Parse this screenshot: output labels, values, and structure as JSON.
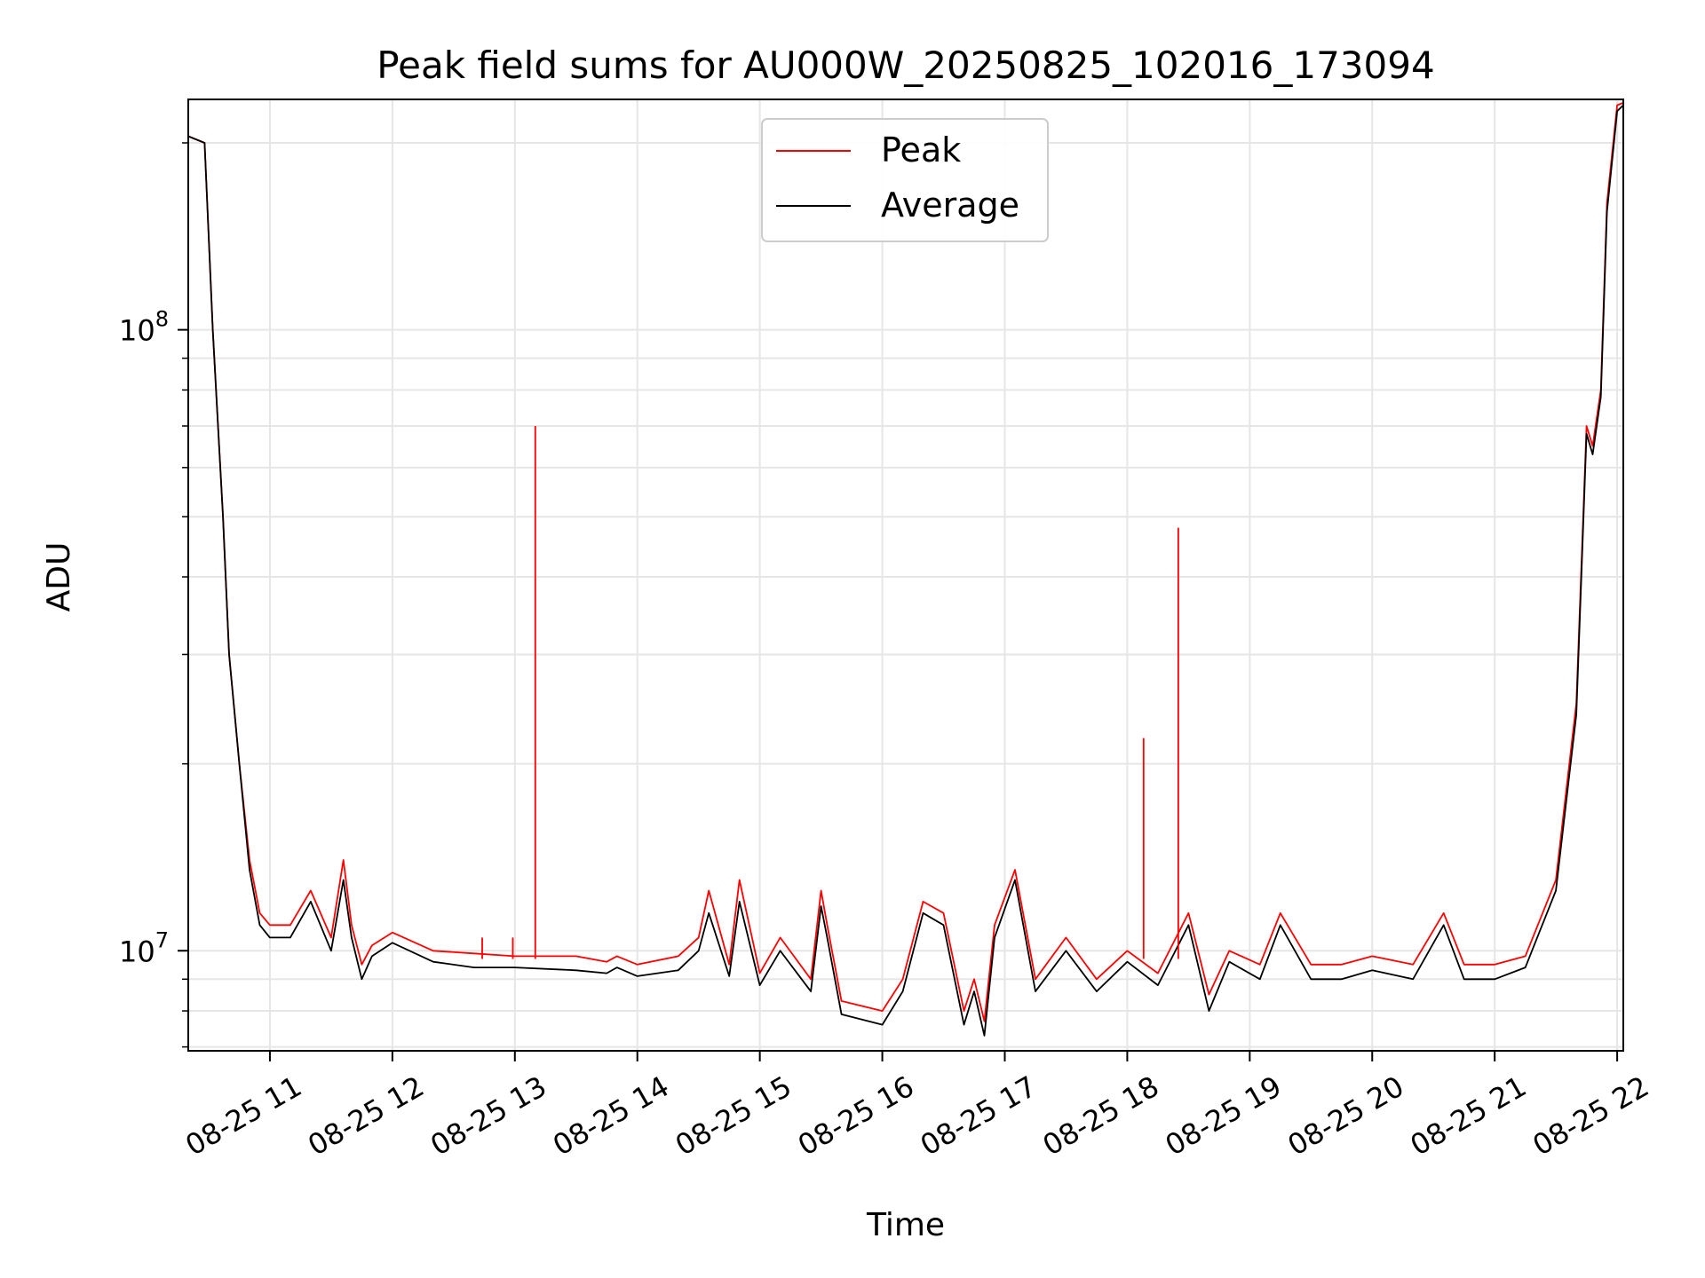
{
  "chart_data": {
    "type": "line",
    "title": "Peak field sums for AU000W_20250825_102016_173094",
    "xlabel": "Time",
    "ylabel": "ADU",
    "yscale": "log",
    "ylim": [
      6900000,
      235000000
    ],
    "xlim": [
      "08-25 10:20",
      "08-25 22:03"
    ],
    "x_ticks": [
      "08-25 11",
      "08-25 12",
      "08-25 13",
      "08-25 14",
      "08-25 15",
      "08-25 16",
      "08-25 17",
      "08-25 18",
      "08-25 19",
      "08-25 20",
      "08-25 21",
      "08-25 22"
    ],
    "y_ticks": [
      {
        "value": 10000000,
        "base": "10",
        "exp": "7"
      },
      {
        "value": 100000000,
        "base": "10",
        "exp": "8"
      }
    ],
    "grid": true,
    "legend_position": "top-center",
    "x": [
      "08-25 10:20",
      "08-25 10:28",
      "08-25 10:32",
      "08-25 10:37",
      "08-25 10:40",
      "08-25 10:45",
      "08-25 10:50",
      "08-25 10:55",
      "08-25 11:00",
      "08-25 11:10",
      "08-25 11:20",
      "08-25 11:30",
      "08-25 11:36",
      "08-25 11:40",
      "08-25 11:45",
      "08-25 11:50",
      "08-25 12:00",
      "08-25 12:20",
      "08-25 12:40",
      "08-25 13:00",
      "08-25 13:30",
      "08-25 13:45",
      "08-25 13:50",
      "08-25 14:00",
      "08-25 14:20",
      "08-25 14:30",
      "08-25 14:35",
      "08-25 14:45",
      "08-25 14:50",
      "08-25 15:00",
      "08-25 15:10",
      "08-25 15:25",
      "08-25 15:30",
      "08-25 15:33",
      "08-25 15:40",
      "08-25 16:00",
      "08-25 16:10",
      "08-25 16:20",
      "08-25 16:30",
      "08-25 16:40",
      "08-25 16:45",
      "08-25 16:50",
      "08-25 16:55",
      "08-25 17:05",
      "08-25 17:15",
      "08-25 17:30",
      "08-25 17:45",
      "08-25 18:00",
      "08-25 18:15",
      "08-25 18:30",
      "08-25 18:40",
      "08-25 18:50",
      "08-25 19:05",
      "08-25 19:15",
      "08-25 19:30",
      "08-25 19:45",
      "08-25 20:00",
      "08-25 20:20",
      "08-25 20:35",
      "08-25 20:45",
      "08-25 21:00",
      "08-25 21:15",
      "08-25 21:30",
      "08-25 21:40",
      "08-25 21:45",
      "08-25 21:48",
      "08-25 21:52",
      "08-25 21:55",
      "08-25 22:00",
      "08-25 22:03"
    ],
    "series": [
      {
        "name": "Peak",
        "color": "#ff0000",
        "values": [
          205000000,
          200000000,
          100000000,
          50000000,
          30000000,
          20000000,
          14000000,
          11500000,
          11000000,
          11000000,
          12500000,
          10500000,
          14000000,
          11000000,
          9500000,
          10200000,
          10700000,
          10000000,
          9900000,
          9800000,
          9800000,
          9600000,
          9800000,
          9500000,
          9800000,
          10500000,
          12500000,
          9500000,
          13000000,
          9200000,
          10500000,
          9000000,
          12500000,
          11000000,
          8300000,
          8000000,
          9000000,
          12000000,
          11500000,
          8000000,
          9000000,
          7700000,
          11000000,
          13500000,
          9000000,
          10500000,
          9000000,
          10000000,
          9200000,
          11500000,
          8500000,
          10000000,
          9500000,
          11500000,
          9500000,
          9500000,
          9800000,
          9500000,
          11500000,
          9500000,
          9500000,
          9800000,
          13000000,
          25000000,
          70000000,
          65000000,
          80000000,
          160000000,
          230000000,
          232000000
        ]
      },
      {
        "name": "Average",
        "color": "#000000",
        "values": [
          205000000,
          200000000,
          100000000,
          50000000,
          30000000,
          20000000,
          13500000,
          11000000,
          10500000,
          10500000,
          12000000,
          10000000,
          13000000,
          10500000,
          9000000,
          9800000,
          10300000,
          9600000,
          9400000,
          9400000,
          9300000,
          9200000,
          9400000,
          9100000,
          9300000,
          10000000,
          11500000,
          9100000,
          12000000,
          8800000,
          10000000,
          8600000,
          11800000,
          10500000,
          7900000,
          7600000,
          8600000,
          11500000,
          11000000,
          7600000,
          8600000,
          7300000,
          10500000,
          13000000,
          8600000,
          10000000,
          8600000,
          9600000,
          8800000,
          11000000,
          8000000,
          9600000,
          9000000,
          11000000,
          9000000,
          9000000,
          9300000,
          9000000,
          11000000,
          9000000,
          9000000,
          9400000,
          12500000,
          24000000,
          68000000,
          63000000,
          78000000,
          155000000,
          225000000,
          230000000
        ]
      }
    ],
    "spikes": {
      "series": "Peak",
      "x": [
        "08-25 12:44",
        "08-25 12:59",
        "08-25 13:10",
        "08-25 18:08",
        "08-25 18:25"
      ],
      "values": [
        10500000,
        10500000,
        70000000,
        22000000,
        48000000
      ]
    }
  }
}
